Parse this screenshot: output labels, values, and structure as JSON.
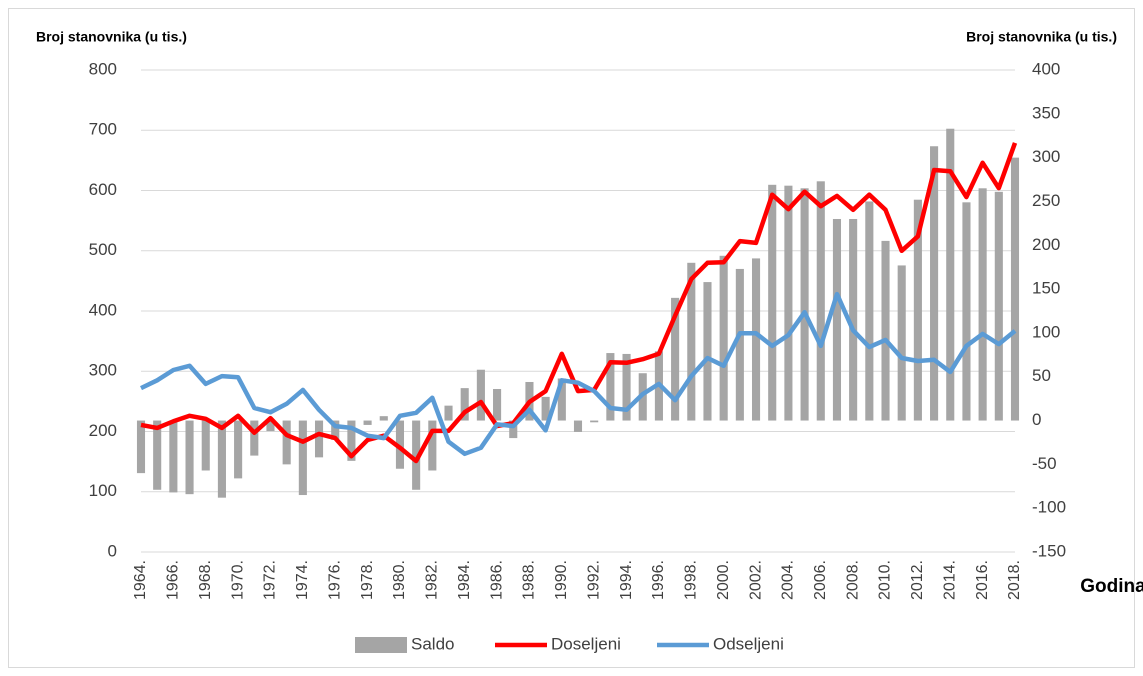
{
  "chart_data": {
    "type": "combo",
    "y_label": "Broj stanovnika (u tis.)",
    "y2_label": "Broj stanovnika (u tis.)",
    "x_label": "Godina",
    "categories": [
      "1964.",
      null,
      "1966.",
      null,
      "1968.",
      null,
      "1970.",
      null,
      "1972.",
      null,
      "1974.",
      null,
      "1976.",
      null,
      "1978.",
      null,
      "1980.",
      null,
      "1982.",
      null,
      "1984.",
      null,
      "1986.",
      null,
      "1988.",
      null,
      "1990.",
      null,
      "1992.",
      null,
      "1994.",
      null,
      "1996.",
      null,
      "1998.",
      null,
      "2000.",
      null,
      "2002.",
      null,
      "2004.",
      null,
      "2006.",
      null,
      "2008.",
      null,
      "2010.",
      null,
      "2012.",
      null,
      "2014.",
      null,
      "2016.",
      null,
      "2018."
    ],
    "ylim": [
      0,
      800
    ],
    "yticks": [
      0,
      100,
      200,
      300,
      400,
      500,
      600,
      700,
      800
    ],
    "y2lim": [
      -150,
      400
    ],
    "y2ticks": [
      -150,
      -100,
      -50,
      0,
      50,
      100,
      150,
      200,
      250,
      300,
      350,
      400
    ],
    "grid": true,
    "series": [
      {
        "name": "Saldo",
        "type": "bar",
        "axis": "y2",
        "color": "#a5a5a5",
        "values": [
          -60,
          -79,
          -82,
          -84,
          -57,
          -88,
          -66,
          -40,
          -12,
          -50,
          -85,
          -42,
          -22,
          -46,
          -5,
          5,
          -55,
          -79,
          -57,
          17,
          37,
          58,
          36,
          -20,
          44,
          27,
          48,
          -13,
          -2,
          77,
          76,
          54,
          79,
          140,
          180,
          158,
          188,
          173,
          185,
          269,
          268,
          265,
          273,
          230,
          230,
          250,
          205,
          177,
          252,
          313,
          333,
          249,
          265,
          261,
          300
        ]
      },
      {
        "name": "Doseljeni",
        "type": "line",
        "axis": "y",
        "color": "#ff0000",
        "values": [
          211,
          206,
          217,
          226,
          221,
          206,
          226,
          198,
          222,
          194,
          183,
          196,
          189,
          159,
          186,
          193,
          173,
          151,
          201,
          201,
          232,
          249,
          209,
          214,
          249,
          267,
          329,
          267,
          269,
          315,
          314,
          320,
          329,
          392,
          453,
          480,
          481,
          516,
          513,
          593,
          569,
          598,
          574,
          591,
          568,
          593,
          568,
          500,
          524,
          634,
          632,
          589,
          646,
          604,
          679
        ]
      },
      {
        "name": "Odseljeni",
        "type": "line",
        "axis": "y",
        "color": "#5b9bd5",
        "values": [
          272,
          285,
          302,
          309,
          279,
          292,
          290,
          239,
          232,
          246,
          269,
          236,
          209,
          206,
          193,
          189,
          226,
          231,
          256,
          183,
          163,
          173,
          212,
          209,
          236,
          202,
          285,
          281,
          267,
          239,
          236,
          262,
          279,
          252,
          292,
          322,
          309,
          363,
          363,
          342,
          360,
          398,
          342,
          428,
          368,
          340,
          352,
          322,
          317,
          319,
          299,
          342,
          362,
          345,
          367
        ]
      }
    ]
  }
}
